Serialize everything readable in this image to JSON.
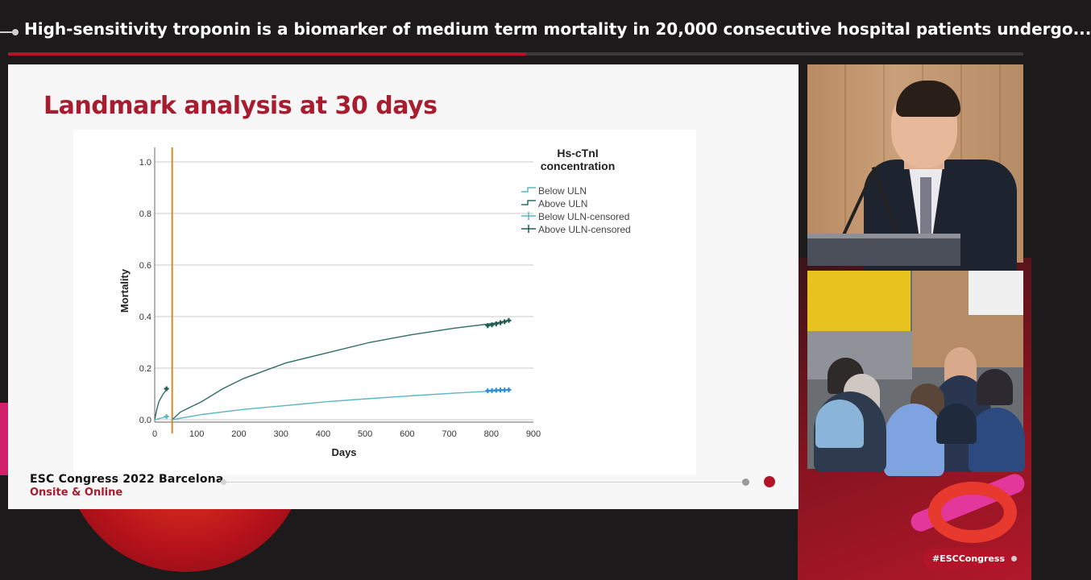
{
  "header": {
    "title": "High-sensitivity troponin is a biomarker of medium term mortality in 20,000 consecutive hospital patients undergo...",
    "progress": 0.51
  },
  "slide": {
    "title": "Landmark analysis at 30 days",
    "footer": {
      "line1": "ESC Congress 2022 Barcelona",
      "line2": "Onsite & Online"
    }
  },
  "chart_data": {
    "type": "line",
    "xlabel": "Days",
    "ylabel": "Mortality",
    "xlim": [
      0,
      900
    ],
    "ylim": [
      0,
      1.0
    ],
    "xticks": [
      0,
      100,
      200,
      300,
      400,
      500,
      600,
      700,
      800,
      900
    ],
    "yticks": [
      "0.0",
      "0.2",
      "0.4",
      "0.6",
      "0.8",
      "1.0"
    ],
    "grid": "horizontal",
    "landmark_day": 30,
    "legend": {
      "title": "Hs-cTnI concentration",
      "placement": "top-right",
      "entries": [
        "Below ULN",
        "Above ULN",
        "Below ULN-censored",
        "Above ULN-censored"
      ]
    },
    "series": [
      {
        "name": "Above ULN",
        "color": "#2f6e63",
        "x": [
          0,
          5,
          10,
          20,
          30
        ],
        "y": [
          0.0,
          0.04,
          0.07,
          0.1,
          0.12
        ]
      },
      {
        "name": "Below ULN",
        "color": "#5bb7c4",
        "x": [
          0,
          10,
          20,
          30
        ],
        "y": [
          0.0,
          0.004,
          0.008,
          0.012
        ]
      },
      {
        "name": "Above ULN",
        "color": "#2f6e63",
        "x": [
          30,
          50,
          100,
          150,
          200,
          250,
          300,
          400,
          500,
          600,
          700,
          800,
          830
        ],
        "y": [
          0.0,
          0.03,
          0.07,
          0.12,
          0.16,
          0.19,
          0.22,
          0.26,
          0.3,
          0.33,
          0.355,
          0.375,
          0.385
        ]
      },
      {
        "name": "Below ULN",
        "color": "#5bb7c4",
        "x": [
          30,
          100,
          200,
          300,
          400,
          500,
          600,
          700,
          800,
          830
        ],
        "y": [
          0.0,
          0.02,
          0.04,
          0.055,
          0.07,
          0.082,
          0.093,
          0.103,
          0.112,
          0.115
        ]
      }
    ],
    "censored": [
      {
        "name": "Above ULN-censored",
        "color": "#1f5a50",
        "x": [
          780,
          790,
          800,
          810,
          820,
          830
        ],
        "y": [
          0.365,
          0.368,
          0.372,
          0.376,
          0.38,
          0.385
        ]
      },
      {
        "name": "Below ULN-censored",
        "color": "#2a8fd6",
        "x": [
          780,
          790,
          800,
          810,
          820,
          830
        ],
        "y": [
          0.112,
          0.113,
          0.114,
          0.115,
          0.115,
          0.116
        ]
      },
      {
        "name": "Above ULN-censored",
        "color": "#1f5a50",
        "x": [
          28
        ],
        "y": [
          0.12
        ]
      },
      {
        "name": "Below ULN-censored",
        "color": "#5bb7c4",
        "x": [
          28
        ],
        "y": [
          0.012
        ]
      }
    ],
    "landmark_color": "#d08a2a"
  },
  "branding": {
    "hashtag": "#ESCCongress"
  }
}
